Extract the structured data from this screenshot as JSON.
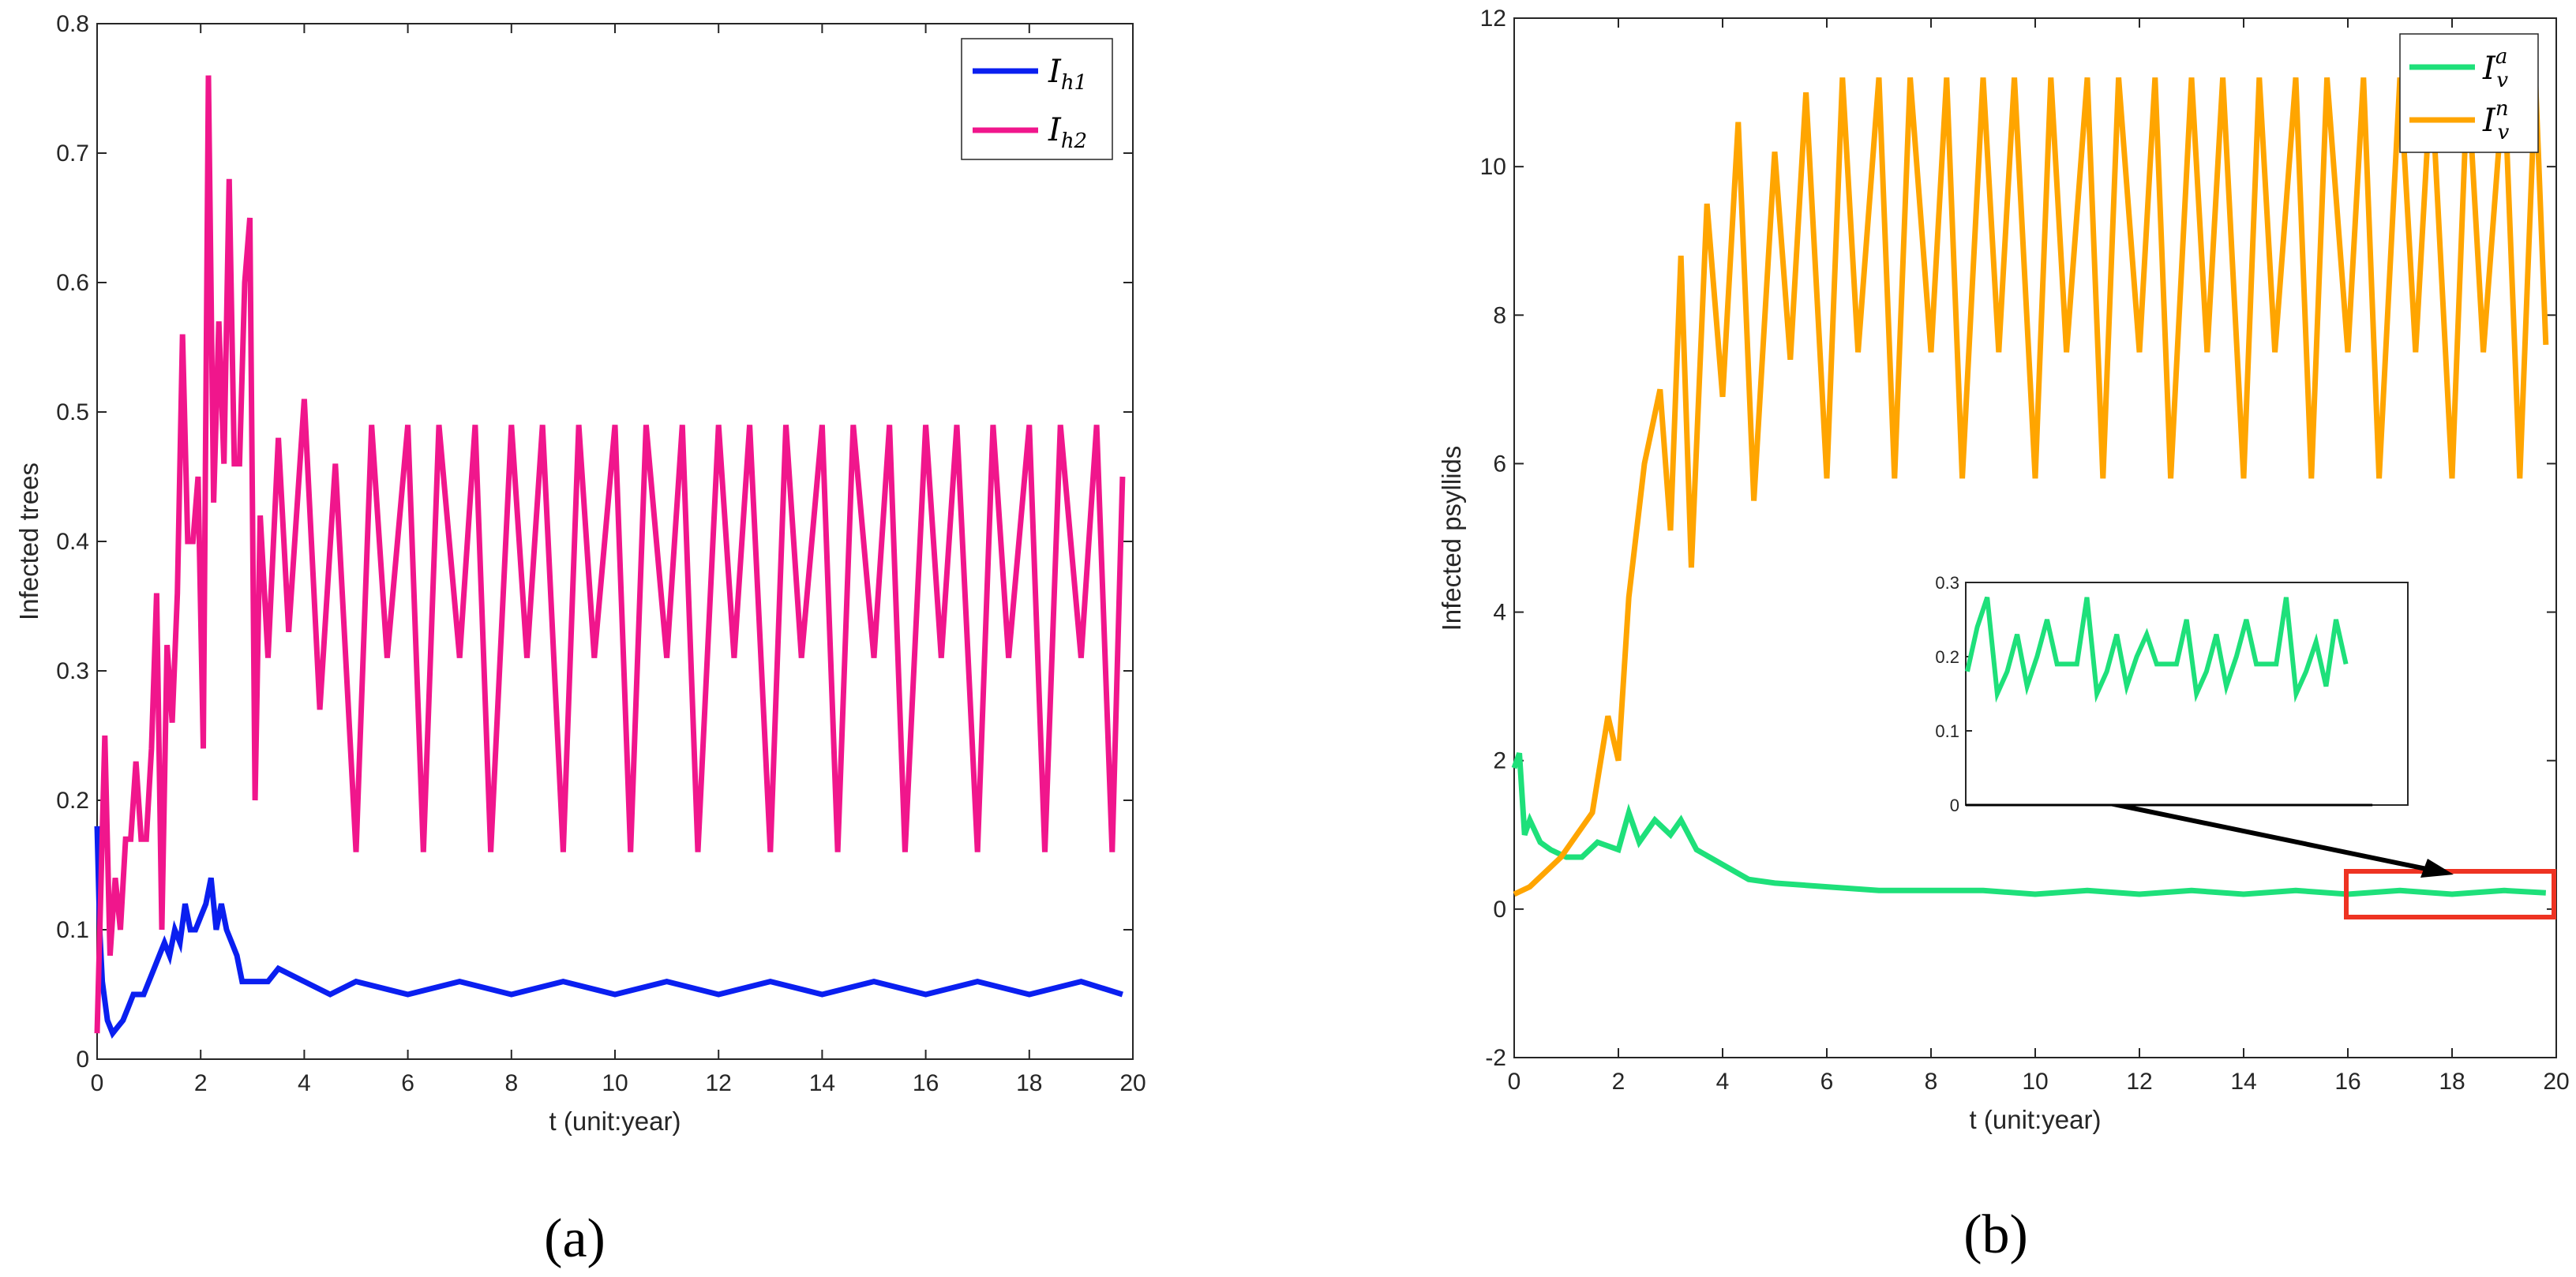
{
  "colors": {
    "Ih1": "#0a1ff0",
    "Ih2": "#f0168c",
    "Iva": "#1ee07a",
    "Ivn": "#ffa500",
    "highlight": "#ee3322",
    "axis": "#262626"
  },
  "chart_data": [
    {
      "panel": "(a)",
      "type": "line",
      "title": "",
      "xlabel": "t (unit:year)",
      "ylabel": "Infected trees",
      "xlim": [
        0,
        20
      ],
      "ylim": [
        0,
        0.8
      ],
      "xticks": [
        0,
        2,
        4,
        6,
        8,
        10,
        12,
        14,
        16,
        18,
        20
      ],
      "xtick_labels": [
        "0",
        "2",
        "4",
        "6",
        "8",
        "10",
        "12",
        "14",
        "16",
        "18",
        "20"
      ],
      "yticks": [
        0,
        0.1,
        0.2,
        0.3,
        0.4,
        0.5,
        0.6,
        0.7,
        0.8
      ],
      "ytick_labels": [
        "0",
        "0.1",
        "0.2",
        "0.3",
        "0.4",
        "0.5",
        "0.6",
        "0.7",
        "0.8"
      ],
      "legend_position": "top-right",
      "series": [
        {
          "name": "I_h1",
          "label_main": "I",
          "label_sub": "h1",
          "color_key": "Ih1",
          "x": [
            0,
            0.05,
            0.1,
            0.2,
            0.3,
            0.4,
            0.5,
            0.6,
            0.7,
            0.8,
            0.9,
            1.0,
            1.1,
            1.2,
            1.3,
            1.4,
            1.5,
            1.6,
            1.7,
            1.8,
            1.9,
            2.0,
            2.1,
            2.2,
            2.3,
            2.4,
            2.5,
            2.6,
            2.7,
            2.8,
            3.0,
            3.2,
            3.3,
            3.5,
            4.0,
            4.5,
            5.0,
            6.0,
            7.0,
            8.0,
            9.0,
            10.0,
            11.0,
            12.0,
            13.0,
            14.0,
            15.0,
            16.0,
            17.0,
            18.0,
            19.0,
            19.8
          ],
          "y": [
            0.18,
            0.1,
            0.06,
            0.03,
            0.02,
            0.025,
            0.03,
            0.04,
            0.05,
            0.05,
            0.05,
            0.06,
            0.07,
            0.08,
            0.09,
            0.08,
            0.1,
            0.09,
            0.12,
            0.1,
            0.1,
            0.11,
            0.12,
            0.14,
            0.1,
            0.12,
            0.1,
            0.09,
            0.08,
            0.06,
            0.06,
            0.06,
            0.06,
            0.07,
            0.06,
            0.05,
            0.06,
            0.05,
            0.06,
            0.05,
            0.06,
            0.05,
            0.06,
            0.05,
            0.06,
            0.05,
            0.06,
            0.05,
            0.06,
            0.05,
            0.06,
            0.05
          ]
        },
        {
          "name": "I_h2",
          "label_main": "I",
          "label_sub": "h2",
          "color_key": "Ih2",
          "x": [
            0,
            0.15,
            0.25,
            0.35,
            0.45,
            0.55,
            0.65,
            0.75,
            0.85,
            0.95,
            1.05,
            1.15,
            1.25,
            1.35,
            1.45,
            1.55,
            1.65,
            1.75,
            1.85,
            1.95,
            2.05,
            2.15,
            2.25,
            2.35,
            2.45,
            2.55,
            2.65,
            2.75,
            2.85,
            2.95,
            3.05,
            3.15,
            3.3,
            3.5,
            3.7,
            4.0,
            4.3,
            4.6,
            5.0,
            5.3,
            5.6,
            6.0,
            6.3,
            6.6,
            7.0,
            7.3,
            7.6,
            8.0,
            8.3,
            8.6,
            9.0,
            9.3,
            9.6,
            10.0,
            10.3,
            10.6,
            11.0,
            11.3,
            11.6,
            12.0,
            12.3,
            12.6,
            13.0,
            13.3,
            13.6,
            14.0,
            14.3,
            14.6,
            15.0,
            15.3,
            15.6,
            16.0,
            16.3,
            16.6,
            17.0,
            17.3,
            17.6,
            18.0,
            18.3,
            18.6,
            19.0,
            19.3,
            19.6,
            19.8
          ],
          "y": [
            0.02,
            0.25,
            0.08,
            0.14,
            0.1,
            0.17,
            0.17,
            0.23,
            0.17,
            0.17,
            0.24,
            0.36,
            0.1,
            0.32,
            0.26,
            0.36,
            0.56,
            0.4,
            0.4,
            0.45,
            0.24,
            0.76,
            0.43,
            0.57,
            0.46,
            0.68,
            0.46,
            0.46,
            0.6,
            0.65,
            0.2,
            0.42,
            0.31,
            0.48,
            0.33,
            0.51,
            0.27,
            0.46,
            0.16,
            0.49,
            0.31,
            0.49,
            0.16,
            0.49,
            0.31,
            0.49,
            0.16,
            0.49,
            0.31,
            0.49,
            0.16,
            0.49,
            0.31,
            0.49,
            0.16,
            0.49,
            0.31,
            0.49,
            0.16,
            0.49,
            0.31,
            0.49,
            0.16,
            0.49,
            0.31,
            0.49,
            0.16,
            0.49,
            0.31,
            0.49,
            0.16,
            0.49,
            0.31,
            0.49,
            0.16,
            0.49,
            0.31,
            0.49,
            0.16,
            0.49,
            0.31,
            0.49,
            0.16,
            0.45
          ]
        }
      ]
    },
    {
      "panel": "(b)",
      "type": "line",
      "title": "",
      "xlabel": "t (unit:year)",
      "ylabel": "Infected psyllids",
      "xlim": [
        0,
        20
      ],
      "ylim": [
        -2,
        12
      ],
      "xticks": [
        0,
        2,
        4,
        6,
        8,
        10,
        12,
        14,
        16,
        18,
        20
      ],
      "xtick_labels": [
        "0",
        "2",
        "4",
        "6",
        "8",
        "10",
        "12",
        "14",
        "16",
        "18",
        "20"
      ],
      "yticks": [
        -2,
        0,
        2,
        4,
        6,
        8,
        10,
        12
      ],
      "ytick_labels": [
        "-2",
        "0",
        "2",
        "4",
        "6",
        "8",
        "10",
        "12"
      ],
      "legend_position": "top-right",
      "series": [
        {
          "name": "I_v^a",
          "label_main": "I",
          "label_sub": "v",
          "label_sup": "a",
          "color_key": "Iva",
          "x": [
            0,
            0.1,
            0.2,
            0.3,
            0.5,
            0.7,
            1.0,
            1.3,
            1.6,
            2.0,
            2.2,
            2.4,
            2.7,
            3.0,
            3.2,
            3.5,
            4.0,
            4.5,
            5.0,
            6.0,
            7.0,
            8.0,
            9.0,
            10.0,
            11.0,
            12.0,
            13.0,
            14.0,
            15.0,
            16.0,
            17.0,
            18.0,
            19.0,
            19.8
          ],
          "y": [
            1.9,
            2.1,
            1.0,
            1.2,
            0.9,
            0.8,
            0.7,
            0.7,
            0.9,
            0.8,
            1.3,
            0.9,
            1.2,
            1.0,
            1.2,
            0.8,
            0.6,
            0.4,
            0.35,
            0.3,
            0.25,
            0.25,
            0.25,
            0.2,
            0.25,
            0.2,
            0.25,
            0.2,
            0.25,
            0.2,
            0.25,
            0.2,
            0.25,
            0.22
          ]
        },
        {
          "name": "I_v^n",
          "label_main": "I",
          "label_sub": "v",
          "label_sup": "n",
          "color_key": "Ivn",
          "x": [
            0,
            0.3,
            0.6,
            0.9,
            1.2,
            1.5,
            1.8,
            2.0,
            2.2,
            2.5,
            2.8,
            3.0,
            3.2,
            3.4,
            3.7,
            4.0,
            4.3,
            4.6,
            5.0,
            5.3,
            5.6,
            6.0,
            6.3,
            6.6,
            7.0,
            7.3,
            7.6,
            8.0,
            8.3,
            8.6,
            9.0,
            9.3,
            9.6,
            10.0,
            10.3,
            10.6,
            11.0,
            11.3,
            11.6,
            12.0,
            12.3,
            12.6,
            13.0,
            13.3,
            13.6,
            14.0,
            14.3,
            14.6,
            15.0,
            15.3,
            15.6,
            16.0,
            16.3,
            16.6,
            17.0,
            17.3,
            17.6,
            18.0,
            18.3,
            18.6,
            19.0,
            19.3,
            19.6,
            19.8
          ],
          "y": [
            0.2,
            0.3,
            0.5,
            0.7,
            1.0,
            1.3,
            2.6,
            2.0,
            4.2,
            6.0,
            7.0,
            5.1,
            8.8,
            4.6,
            9.5,
            6.9,
            10.6,
            5.5,
            10.2,
            7.4,
            11.0,
            5.8,
            11.2,
            7.5,
            11.2,
            5.8,
            11.2,
            7.5,
            11.2,
            5.8,
            11.2,
            7.5,
            11.2,
            5.8,
            11.2,
            7.5,
            11.2,
            5.8,
            11.2,
            7.5,
            11.2,
            5.8,
            11.2,
            7.5,
            11.2,
            5.8,
            11.2,
            7.5,
            11.2,
            5.8,
            11.2,
            7.5,
            11.2,
            5.8,
            11.2,
            7.5,
            11.2,
            5.8,
            11.2,
            7.5,
            11.2,
            5.8,
            11.2,
            7.6
          ]
        }
      ],
      "inset": {
        "source_range_x": [
          16,
          20
        ],
        "ylim": [
          0,
          0.3
        ],
        "yticks": [
          0,
          0.1,
          0.2,
          0.3
        ],
        "ytick_labels": [
          "0",
          "0.1",
          "0.2",
          "0.3"
        ],
        "series_key": "Iva",
        "values": [
          0.18,
          0.24,
          0.28,
          0.15,
          0.18,
          0.23,
          0.16,
          0.2,
          0.25,
          0.19,
          0.19,
          0.19,
          0.28,
          0.15,
          0.18,
          0.23,
          0.16,
          0.2,
          0.23,
          0.19,
          0.19,
          0.19,
          0.25,
          0.15,
          0.18,
          0.23,
          0.16,
          0.2,
          0.25,
          0.19,
          0.19,
          0.19,
          0.28,
          0.15,
          0.18,
          0.22,
          0.16,
          0.25,
          0.19
        ]
      }
    }
  ]
}
